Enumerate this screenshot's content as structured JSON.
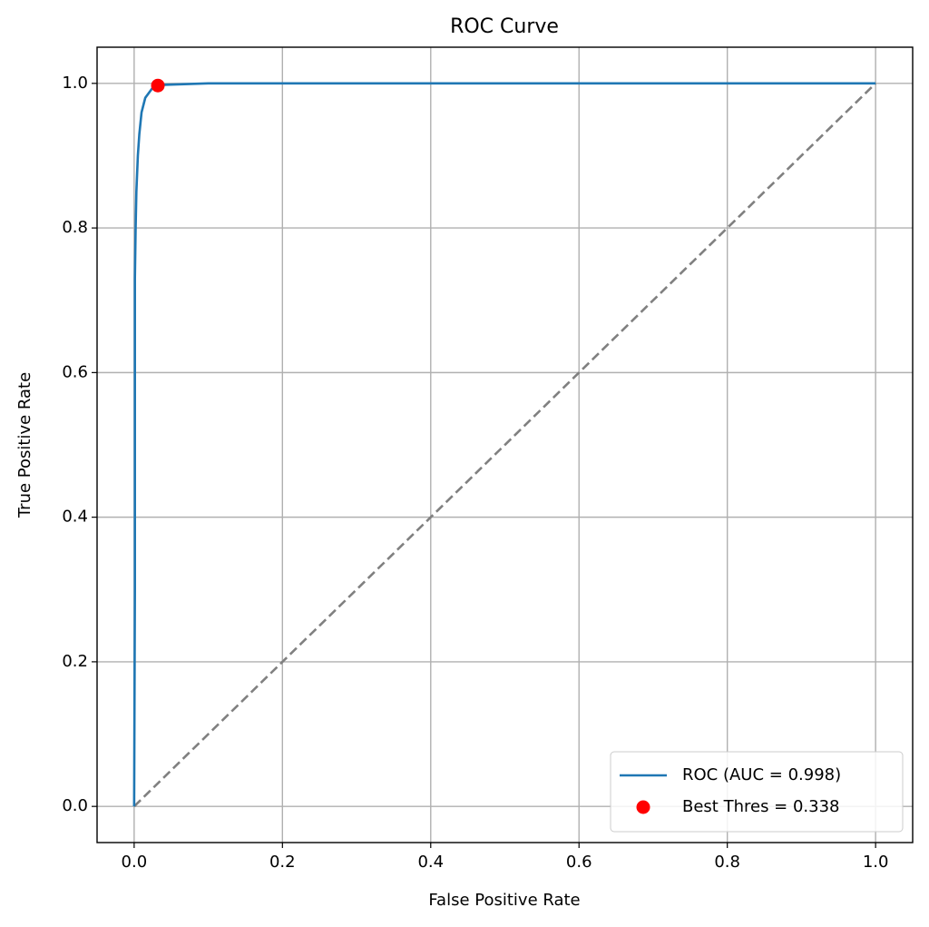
{
  "chart_data": {
    "type": "line",
    "title": "ROC Curve",
    "x_label": "False Positive Rate",
    "y_label": "True Positive Rate",
    "xlim": [
      -0.05,
      1.05
    ],
    "ylim": [
      -0.05,
      1.05
    ],
    "xticks": [
      {
        "value": 0,
        "label": "0.0"
      },
      {
        "value": 0.2,
        "label": "0.2"
      },
      {
        "value": 0.4,
        "label": "0.4"
      },
      {
        "value": 0.6,
        "label": "0.6"
      },
      {
        "value": 0.8,
        "label": "0.8"
      },
      {
        "value": 1,
        "label": "1.0"
      }
    ],
    "yticks": [
      {
        "value": 0,
        "label": "0.0"
      },
      {
        "value": 0.2,
        "label": "0.2"
      },
      {
        "value": 0.4,
        "label": "0.4"
      },
      {
        "value": 0.6,
        "label": "0.6"
      },
      {
        "value": 0.8,
        "label": "0.8"
      },
      {
        "value": 1,
        "label": "1.0"
      }
    ],
    "grid": true,
    "legend": "lower right",
    "series": [
      {
        "name": "ROC (AUC = 0.998)",
        "color": "#1f77b4",
        "linestyle": "solid",
        "marker": "none",
        "x": [
          0,
          0.001,
          0.001,
          0.002,
          0.003,
          0.005,
          0.007,
          0.01,
          0.015,
          0.025,
          0.04,
          0.1,
          1
        ],
        "y": [
          0,
          0.3,
          0.73,
          0.8,
          0.85,
          0.9,
          0.93,
          0.96,
          0.98,
          0.994,
          0.998,
          1,
          1
        ]
      },
      {
        "color": "#808080",
        "linestyle": "dashed",
        "marker": "none",
        "x": [
          0,
          1
        ],
        "y": [
          0,
          1
        ]
      },
      {
        "name": "Best Thres = 0.338",
        "color": "#ff0000",
        "linestyle": "none",
        "marker": "circle",
        "x": [
          0.032
        ],
        "y": [
          0.997
        ]
      }
    ]
  }
}
